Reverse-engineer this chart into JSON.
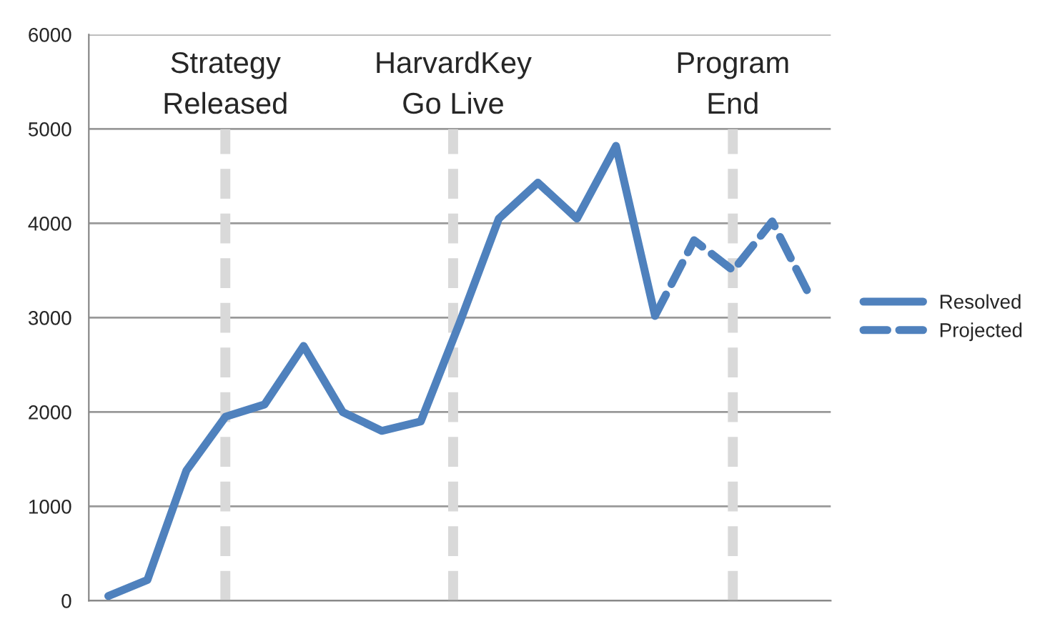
{
  "chart_data": {
    "type": "line",
    "categories": [
      null,
      null,
      null,
      null,
      null,
      null,
      null,
      null,
      null,
      null,
      null,
      null,
      null,
      null,
      null,
      null,
      null,
      null,
      null
    ],
    "series": [
      {
        "name": "Resolved",
        "color": "#4f81bd",
        "line_style": "solid",
        "values": [
          50,
          220,
          1380,
          1950,
          2080,
          2700,
          2000,
          1800,
          1900,
          2950,
          4050,
          4430,
          4050,
          4820,
          3020,
          null,
          null,
          null,
          null
        ]
      },
      {
        "name": "Projected",
        "color": "#4f81bd",
        "line_style": "dashed",
        "values": [
          null,
          null,
          null,
          null,
          null,
          null,
          null,
          null,
          null,
          null,
          null,
          null,
          null,
          null,
          3020,
          3820,
          3500,
          4020,
          3200
        ]
      }
    ],
    "ylim": [
      0,
      6000
    ],
    "yticks": [
      0,
      1000,
      2000,
      3000,
      4000,
      5000,
      6000
    ],
    "annotations": [
      "Strategy\nReleased",
      "HarvardKey\nGo Live",
      "Program\nEnd"
    ],
    "grid": "y",
    "legend": "right",
    "marker": "none"
  }
}
